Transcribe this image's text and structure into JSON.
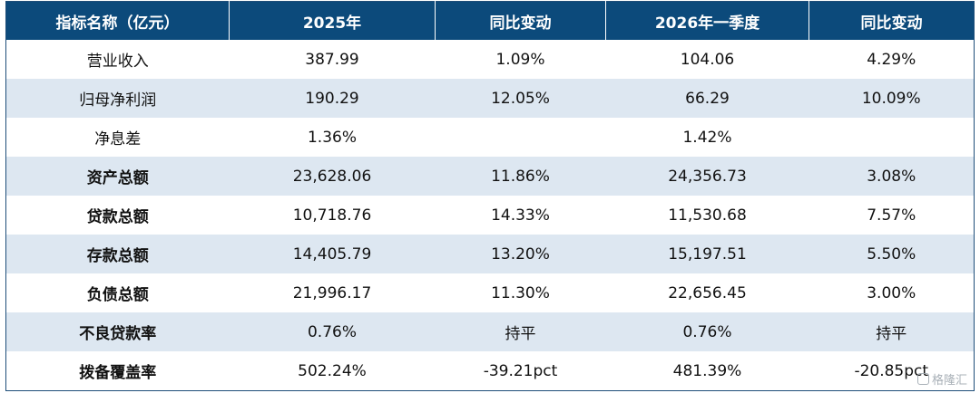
{
  "headers": [
    "指标名称（亿元）",
    "2025年",
    "同比变动",
    "2026年一季度",
    "同比变动"
  ],
  "rows": [
    {
      "name": "营业收入",
      "bold": false,
      "cells": [
        "387.99",
        "1.09%",
        "104.06",
        "4.29%"
      ]
    },
    {
      "name": "归母净利润",
      "bold": false,
      "cells": [
        "190.29",
        "12.05%",
        "66.29",
        "10.09%"
      ]
    },
    {
      "name": "净息差",
      "bold": false,
      "cells": [
        "1.36%",
        "",
        "1.42%",
        ""
      ]
    },
    {
      "name": "资产总额",
      "bold": true,
      "cells": [
        "23,628.06",
        "11.86%",
        "24,356.73",
        "3.08%"
      ]
    },
    {
      "name": "贷款总额",
      "bold": true,
      "cells": [
        "10,718.76",
        "14.33%",
        "11,530.68",
        "7.57%"
      ]
    },
    {
      "name": "存款总额",
      "bold": true,
      "cells": [
        "14,405.79",
        "13.20%",
        "15,197.51",
        "5.50%"
      ]
    },
    {
      "name": "负债总额",
      "bold": true,
      "cells": [
        "21,996.17",
        "11.30%",
        "22,656.45",
        "3.00%"
      ]
    },
    {
      "name": "不良贷款率",
      "bold": true,
      "cells": [
        "0.76%",
        "持平",
        "0.76%",
        "持平"
      ]
    },
    {
      "name": "拨备覆盖率",
      "bold": true,
      "cells": [
        "502.24%",
        "-39.21pct",
        "481.39%",
        "-20.85pct"
      ]
    }
  ],
  "watermark": "格隆汇",
  "colors": {
    "header_bg": "#0c4a7b",
    "stripe": "#dde7f1",
    "text": "#111111"
  }
}
